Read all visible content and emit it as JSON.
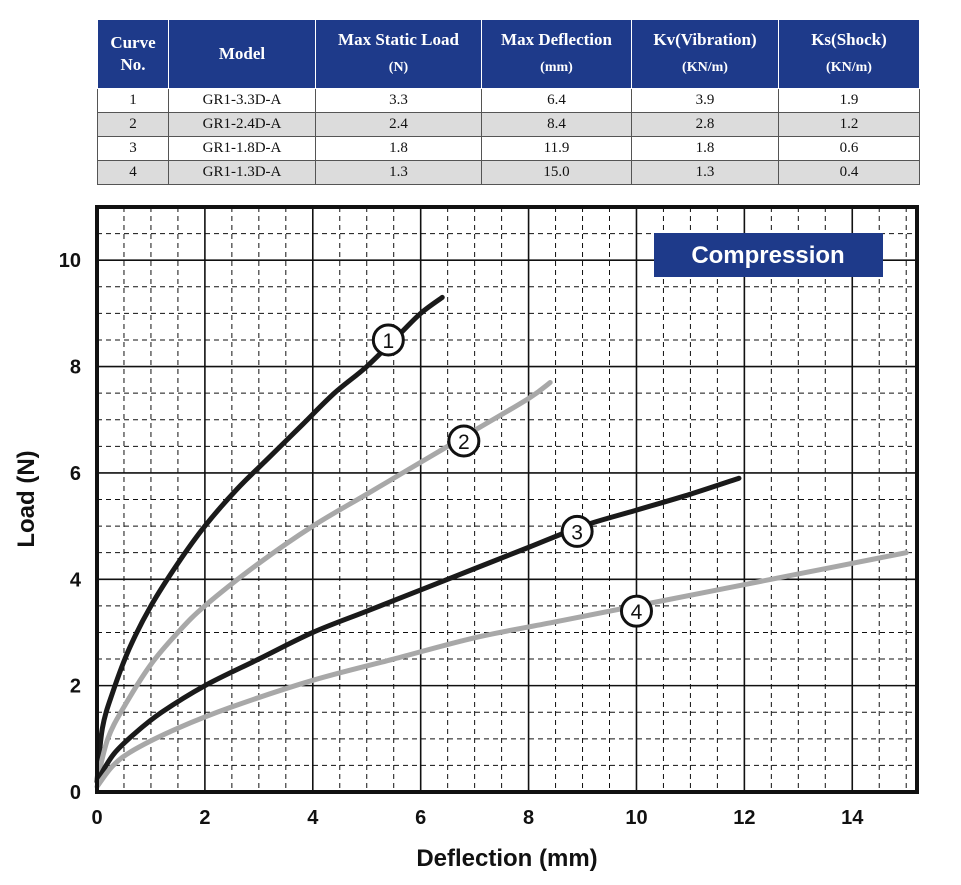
{
  "table": {
    "headers": [
      {
        "label": "Curve",
        "label2": "No.",
        "unit": ""
      },
      {
        "label": "Model",
        "label2": "",
        "unit": ""
      },
      {
        "label": "Max Static Load",
        "label2": "",
        "unit": "(N)"
      },
      {
        "label": "Max Deflection",
        "label2": "",
        "unit": "(mm)"
      },
      {
        "label": "Kv(Vibration)",
        "label2": "",
        "unit": "(KN/m)"
      },
      {
        "label": "Ks(Shock)",
        "label2": "",
        "unit": "(KN/m)"
      }
    ],
    "rows": [
      [
        "1",
        "GR1-3.3D-A",
        "3.3",
        "6.4",
        "3.9",
        "1.9"
      ],
      [
        "2",
        "GR1-2.4D-A",
        "2.4",
        "8.4",
        "2.8",
        "1.2"
      ],
      [
        "3",
        "GR1-1.8D-A",
        "1.8",
        "11.9",
        "1.8",
        "0.6"
      ],
      [
        "4",
        "GR1-1.3D-A",
        "1.3",
        "15.0",
        "1.3",
        "0.4"
      ]
    ]
  },
  "chart_data": {
    "type": "line",
    "badge": "Compression",
    "xlabel": "Deflection (mm)",
    "ylabel": "Load (N)",
    "xlim": [
      0,
      15.2
    ],
    "ylim": [
      0,
      11
    ],
    "xticks": [
      0,
      2,
      4,
      6,
      8,
      10,
      12,
      14
    ],
    "yticks": [
      0,
      2,
      4,
      6,
      8,
      10
    ],
    "grid": true,
    "colors": {
      "dark": "#1a1a1a",
      "light": "#a8a8a8",
      "badge": "#1e3a8a"
    },
    "series": [
      {
        "marker": "1",
        "color": "dark",
        "marker_at": [
          5.4,
          8.5
        ],
        "points": [
          [
            0,
            0.2
          ],
          [
            0.1,
            1.2
          ],
          [
            0.3,
            1.9
          ],
          [
            0.6,
            2.7
          ],
          [
            1.0,
            3.5
          ],
          [
            1.5,
            4.3
          ],
          [
            2.0,
            5.0
          ],
          [
            2.6,
            5.7
          ],
          [
            3.2,
            6.3
          ],
          [
            3.8,
            6.9
          ],
          [
            4.4,
            7.5
          ],
          [
            5.0,
            8.0
          ],
          [
            5.6,
            8.6
          ],
          [
            6.0,
            9.0
          ],
          [
            6.4,
            9.3
          ]
        ]
      },
      {
        "marker": "2",
        "color": "light",
        "marker_at": [
          6.8,
          6.6
        ],
        "points": [
          [
            0,
            0.2
          ],
          [
            0.2,
            1.0
          ],
          [
            0.5,
            1.6
          ],
          [
            1.0,
            2.4
          ],
          [
            1.5,
            3.0
          ],
          [
            2.0,
            3.5
          ],
          [
            3.0,
            4.3
          ],
          [
            4.0,
            5.0
          ],
          [
            5.0,
            5.6
          ],
          [
            6.0,
            6.2
          ],
          [
            7.0,
            6.8
          ],
          [
            8.0,
            7.4
          ],
          [
            8.4,
            7.7
          ]
        ]
      },
      {
        "marker": "3",
        "color": "dark",
        "marker_at": [
          8.9,
          4.9
        ],
        "points": [
          [
            0,
            0.2
          ],
          [
            0.3,
            0.7
          ],
          [
            0.7,
            1.1
          ],
          [
            1.2,
            1.5
          ],
          [
            2.0,
            2.0
          ],
          [
            3.0,
            2.5
          ],
          [
            4.0,
            3.0
          ],
          [
            5.0,
            3.4
          ],
          [
            6.0,
            3.8
          ],
          [
            7.0,
            4.2
          ],
          [
            8.0,
            4.6
          ],
          [
            9.0,
            5.0
          ],
          [
            10.0,
            5.3
          ],
          [
            11.0,
            5.6
          ],
          [
            11.9,
            5.9
          ]
        ]
      },
      {
        "marker": "4",
        "color": "light",
        "marker_at": [
          10.0,
          3.4
        ],
        "points": [
          [
            0,
            0.1
          ],
          [
            0.3,
            0.5
          ],
          [
            0.7,
            0.8
          ],
          [
            1.5,
            1.2
          ],
          [
            2.5,
            1.6
          ],
          [
            4.0,
            2.1
          ],
          [
            5.5,
            2.5
          ],
          [
            7.0,
            2.9
          ],
          [
            8.5,
            3.2
          ],
          [
            10.0,
            3.5
          ],
          [
            11.5,
            3.8
          ],
          [
            13.0,
            4.1
          ],
          [
            14.0,
            4.3
          ],
          [
            15.0,
            4.5
          ]
        ]
      }
    ]
  }
}
